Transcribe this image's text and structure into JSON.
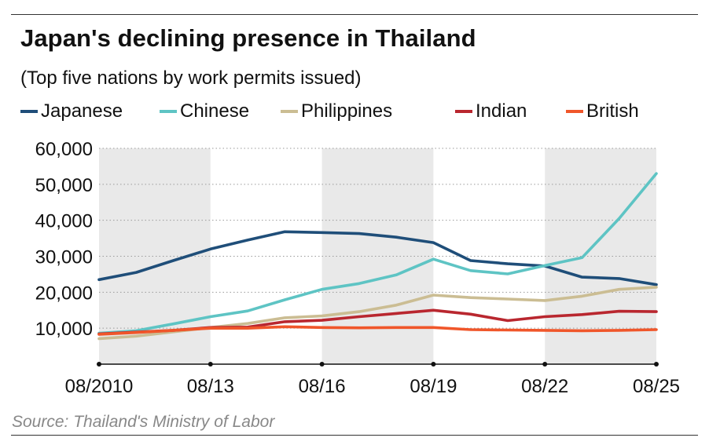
{
  "header": {
    "title": "Japan's declining presence in Thailand",
    "subtitle": "(Top five nations by work permits issued)"
  },
  "source": "Source: Thailand's Ministry of Labor",
  "chart_data": {
    "type": "line",
    "title": "Japan's declining presence in Thailand",
    "subtitle": "(Top five nations by work permits issued)",
    "xlabel": "",
    "ylabel": "",
    "x": [
      "08/2010",
      "08/11",
      "08/12",
      "08/13",
      "08/14",
      "08/15",
      "08/16",
      "08/17",
      "08/18",
      "08/19",
      "08/20",
      "08/21",
      "08/22",
      "08/23",
      "08/24",
      "08/25"
    ],
    "x_tick_labels": [
      "08/2010",
      "08/13",
      "08/16",
      "08/19",
      "08/22",
      "08/25"
    ],
    "y_tick_labels": [
      "10,000",
      "20,000",
      "30,000",
      "40,000",
      "50,000",
      "60,000"
    ],
    "y_ticks": [
      10000,
      20000,
      30000,
      40000,
      50000,
      60000
    ],
    "ylim": [
      0,
      60000
    ],
    "grid": "horizontal dotted",
    "legend_position": "top",
    "shaded_periods": [
      [
        "08/2010",
        "08/13"
      ],
      [
        "08/16",
        "08/19"
      ],
      [
        "08/22",
        "08/25"
      ]
    ],
    "series": [
      {
        "name": "Japanese",
        "color": "#1f4e79",
        "values": [
          23500,
          25500,
          28800,
          32000,
          34500,
          36800,
          36600,
          36300,
          35300,
          33800,
          28800,
          27900,
          27300,
          24200,
          23800,
          22100
        ]
      },
      {
        "name": "Chinese",
        "color": "#5ec4c4",
        "values": [
          8600,
          9300,
          11200,
          13200,
          14800,
          17900,
          20800,
          22400,
          24800,
          29200,
          26000,
          25100,
          27400,
          29600,
          40500,
          53000
        ]
      },
      {
        "name": "Philippines",
        "color": "#cbbd93",
        "values": [
          7100,
          7800,
          9000,
          10200,
          11300,
          12900,
          13400,
          14600,
          16400,
          19200,
          18500,
          18100,
          17700,
          18900,
          20800,
          21400
        ]
      },
      {
        "name": "Indian",
        "color": "#b9272f",
        "values": [
          8400,
          8900,
          9400,
          10200,
          10300,
          11800,
          12200,
          13200,
          14100,
          15000,
          13900,
          12100,
          13200,
          13800,
          14700,
          14600
        ]
      },
      {
        "name": "British",
        "color": "#f0562a",
        "values": [
          8300,
          8800,
          9400,
          10000,
          10000,
          10400,
          10200,
          10100,
          10200,
          10200,
          9600,
          9500,
          9400,
          9300,
          9400,
          9600
        ]
      }
    ]
  }
}
